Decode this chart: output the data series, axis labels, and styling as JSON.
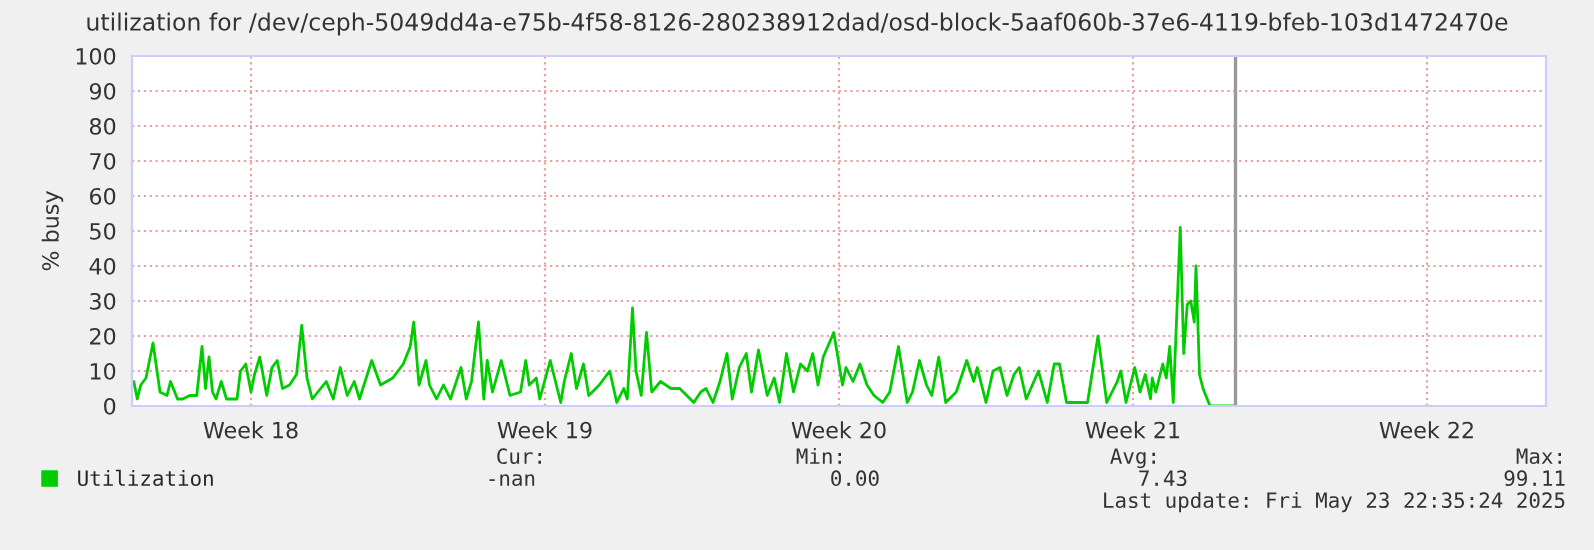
{
  "chart_data": {
    "type": "line",
    "title": "utilization for /dev/ceph-5049dd4a-e75b-4f58-8126-280238912dad/osd-block-5aaf060b-37e6-4119-bfeb-103d1472470e",
    "ylabel": "% busy",
    "series": [
      {
        "name": "Utilization",
        "color": "#00cc00",
        "x": [
          "2025-04-27T17:00",
          "2025-04-27T19:00",
          "2025-04-27T21:00",
          "2025-04-28T00:00",
          "2025-04-28T04:00",
          "2025-04-28T08:00",
          "2025-04-28T12:00",
          "2025-04-28T14:00",
          "2025-04-28T18:00",
          "2025-04-28T21:00",
          "2025-04-29T01:00",
          "2025-04-29T05:00",
          "2025-04-29T08:00",
          "2025-04-29T10:00",
          "2025-04-29T12:00",
          "2025-04-29T14:00",
          "2025-04-29T16:00",
          "2025-04-29T19:00",
          "2025-04-29T22:00",
          "2025-04-30T04:00",
          "2025-04-30T06:00",
          "2025-04-30T09:00",
          "2025-04-30T12:00",
          "2025-04-30T14:00",
          "2025-04-30T17:00",
          "2025-04-30T21:00",
          "2025-05-01T00:00",
          "2025-05-01T03:00",
          "2025-05-01T06:00",
          "2025-05-01T10:00",
          "2025-05-01T14:00",
          "2025-05-01T17:00",
          "2025-05-01T20:00",
          "2025-05-01T23:00",
          "2025-05-02T07:00",
          "2025-05-02T11:00",
          "2025-05-02T15:00",
          "2025-05-02T19:00",
          "2025-05-02T23:00",
          "2025-05-03T02:00",
          "2025-05-03T09:00",
          "2025-05-03T14:00",
          "2025-05-03T21:00",
          "2025-05-04T03:00",
          "2025-05-04T07:00",
          "2025-05-04T09:00",
          "2025-05-04T12:00",
          "2025-05-04T16:00",
          "2025-05-04T18:00",
          "2025-05-04T22:00",
          "2025-05-05T02:00",
          "2025-05-05T06:00",
          "2025-05-05T12:00",
          "2025-05-05T15:00",
          "2025-05-05T18:00",
          "2025-05-05T22:00",
          "2025-05-06T01:00",
          "2025-05-06T03:00",
          "2025-05-06T06:00",
          "2025-05-06T11:00",
          "2025-05-06T16:00",
          "2025-05-06T22:00",
          "2025-05-07T01:00",
          "2025-05-07T03:00",
          "2025-05-07T07:00",
          "2025-05-07T09:00",
          "2025-05-07T15:00",
          "2025-05-07T21:00",
          "2025-05-07T23:00",
          "2025-05-08T03:00",
          "2025-05-08T06:00",
          "2025-05-08T10:00",
          "2025-05-08T13:00",
          "2025-05-08T19:00",
          "2025-05-09T01:00",
          "2025-05-09T05:00",
          "2025-05-09T09:00",
          "2025-05-09T11:00",
          "2025-05-09T14:00",
          "2025-05-09T16:00",
          "2025-05-09T19:00",
          "2025-05-09T22:00",
          "2025-05-10T01:00",
          "2025-05-10T06:00",
          "2025-05-10T12:00",
          "2025-05-10T17:00",
          "2025-05-11T01:00",
          "2025-05-11T05:00",
          "2025-05-11T08:00",
          "2025-05-11T12:00",
          "2025-05-11T16:00",
          "2025-05-11T20:00",
          "2025-05-11T23:00",
          "2025-05-12T03:00",
          "2025-05-12T07:00",
          "2025-05-12T10:00",
          "2025-05-12T14:00",
          "2025-05-12T19:00",
          "2025-05-12T23:00",
          "2025-05-13T02:00",
          "2025-05-13T06:00",
          "2025-05-13T10:00",
          "2025-05-13T14:00",
          "2025-05-13T18:00",
          "2025-05-13T21:00",
          "2025-05-14T00:00",
          "2025-05-14T03:00",
          "2025-05-14T09:00",
          "2025-05-14T14:00",
          "2025-05-14T16:00",
          "2025-05-14T20:00",
          "2025-05-15T00:00",
          "2025-05-15T04:00",
          "2025-05-15T08:00",
          "2025-05-15T13:00",
          "2025-05-15T17:00",
          "2025-05-15T22:00",
          "2025-05-16T03:00",
          "2025-05-16T06:00",
          "2025-05-16T10:00",
          "2025-05-16T14:00",
          "2025-05-16T17:00",
          "2025-05-16T21:00",
          "2025-05-17T01:00",
          "2025-05-17T07:00",
          "2025-05-17T13:00",
          "2025-05-17T17:00",
          "2025-05-17T19:00",
          "2025-05-18T00:00",
          "2025-05-18T04:00",
          "2025-05-18T08:00",
          "2025-05-18T12:00",
          "2025-05-18T16:00",
          "2025-05-18T19:00",
          "2025-05-18T23:00",
          "2025-05-19T06:00",
          "2025-05-19T11:00",
          "2025-05-19T15:00",
          "2025-05-19T18:00",
          "2025-05-19T22:00",
          "2025-05-20T04:00",
          "2025-05-20T10:00",
          "2025-05-20T16:00",
          "2025-05-20T21:00",
          "2025-05-21T03:00",
          "2025-05-21T05:00",
          "2025-05-21T08:00",
          "2025-05-21T13:00",
          "2025-05-21T16:00",
          "2025-05-21T19:00",
          "2025-05-21T22:00",
          "2025-05-21T23:00",
          "2025-05-22T01:00",
          "2025-05-22T05:00",
          "2025-05-22T07:00",
          "2025-05-22T09:00",
          "2025-05-22T11:00",
          "2025-05-22T13:00",
          "2025-05-22T15:00",
          "2025-05-22T17:00",
          "2025-05-22T19:00",
          "2025-05-22T21:00",
          "2025-05-22T23:00",
          "2025-05-23T00:00",
          "2025-05-23T02:00",
          "2025-05-23T04:00",
          "2025-05-23T08:00",
          "2025-05-23T22:00"
        ],
        "values": [
          7,
          2,
          6,
          8,
          18,
          4,
          3,
          7,
          2,
          2,
          3,
          3,
          17,
          5,
          14,
          4,
          2,
          7,
          2,
          2,
          10,
          12,
          4,
          9,
          14,
          3,
          11,
          13,
          5,
          6,
          9,
          23,
          8,
          2,
          7,
          2,
          11,
          3,
          7,
          2,
          13,
          6,
          8,
          12,
          17,
          24,
          6,
          13,
          6,
          2,
          6,
          2,
          11,
          2,
          7,
          24,
          2,
          13,
          4,
          13,
          3,
          4,
          13,
          6,
          8,
          2,
          13,
          1,
          7,
          15,
          5,
          12,
          3,
          6,
          10,
          1,
          5,
          2,
          28,
          10,
          3,
          21,
          4,
          7,
          5,
          5,
          1,
          4,
          5,
          1,
          7,
          15,
          2,
          11,
          15,
          4,
          16,
          3,
          8,
          1,
          15,
          4,
          12,
          10,
          15,
          6,
          14,
          21,
          6,
          11,
          7,
          12,
          6,
          3,
          1,
          4,
          17,
          1,
          4,
          13,
          6,
          3,
          14,
          1,
          4,
          13,
          7,
          11,
          1,
          10,
          11,
          3,
          9,
          11,
          2,
          10,
          1,
          12,
          12,
          1,
          1,
          1,
          20,
          1,
          7,
          10,
          1,
          11,
          4,
          9,
          2,
          8,
          4,
          12,
          8,
          17,
          1,
          26,
          51,
          15,
          29,
          30,
          24,
          40,
          9,
          5,
          0,
          0
        ]
      }
    ],
    "xlim": [
      "2025-04-27T16:00",
      "2025-05-31T08:00"
    ],
    "xticks": [
      {
        "value": "2025-04-30T12:00",
        "label": "Week 18"
      },
      {
        "value": "2025-05-07T12:00",
        "label": "Week 19"
      },
      {
        "value": "2025-05-14T12:00",
        "label": "Week 20"
      },
      {
        "value": "2025-05-21T12:00",
        "label": "Week 21"
      },
      {
        "value": "2025-05-28T12:00",
        "label": "Week 22"
      }
    ],
    "ylim": [
      0,
      100
    ],
    "yticks": [
      0,
      10,
      20,
      30,
      40,
      50,
      60,
      70,
      80,
      90,
      100
    ],
    "grid": true,
    "legend": "bottom left",
    "ref_lines": [
      {
        "axis": "x",
        "value": "2025-05-23T22:35",
        "color": "#999999"
      }
    ],
    "annotations": [
      "Cur:",
      "Min:",
      "Avg:",
      "Max:",
      "-nan",
      "0.00",
      "7.43",
      "99.11",
      "Last update: Fri May 23 22:35:24 2025"
    ]
  }
}
